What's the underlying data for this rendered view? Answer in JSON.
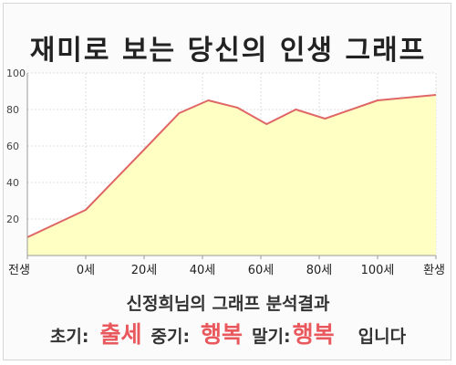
{
  "title": "재미로 보는 당신의 인생 그래프",
  "chart_data": {
    "type": "area",
    "categories": [
      "전생",
      "0세",
      "20세",
      "40세",
      "60세",
      "80세",
      "100세",
      "환생"
    ],
    "points": [
      {
        "x": 0,
        "y": 10
      },
      {
        "x": 1,
        "y": 25
      },
      {
        "x": 2,
        "y": 58
      },
      {
        "x": 2.6,
        "y": 78
      },
      {
        "x": 3.1,
        "y": 85
      },
      {
        "x": 3.6,
        "y": 81
      },
      {
        "x": 4.1,
        "y": 72
      },
      {
        "x": 4.6,
        "y": 80
      },
      {
        "x": 5.1,
        "y": 75
      },
      {
        "x": 6.0,
        "y": 85
      },
      {
        "x": 7,
        "y": 88
      }
    ],
    "ylim": [
      0,
      100
    ],
    "yticks": [
      20,
      40,
      60,
      80,
      100
    ],
    "grid": true,
    "colors": {
      "line": "#e06666",
      "fill": "#ffffc4"
    }
  },
  "summary": {
    "title": "신정희님의 그래프 분석결과",
    "early_label": "초기:",
    "early_value": "출세",
    "mid_label": "중기:",
    "mid_value": "행복",
    "late_label": "말기:",
    "late_value": "행복",
    "suffix": "입니다"
  }
}
